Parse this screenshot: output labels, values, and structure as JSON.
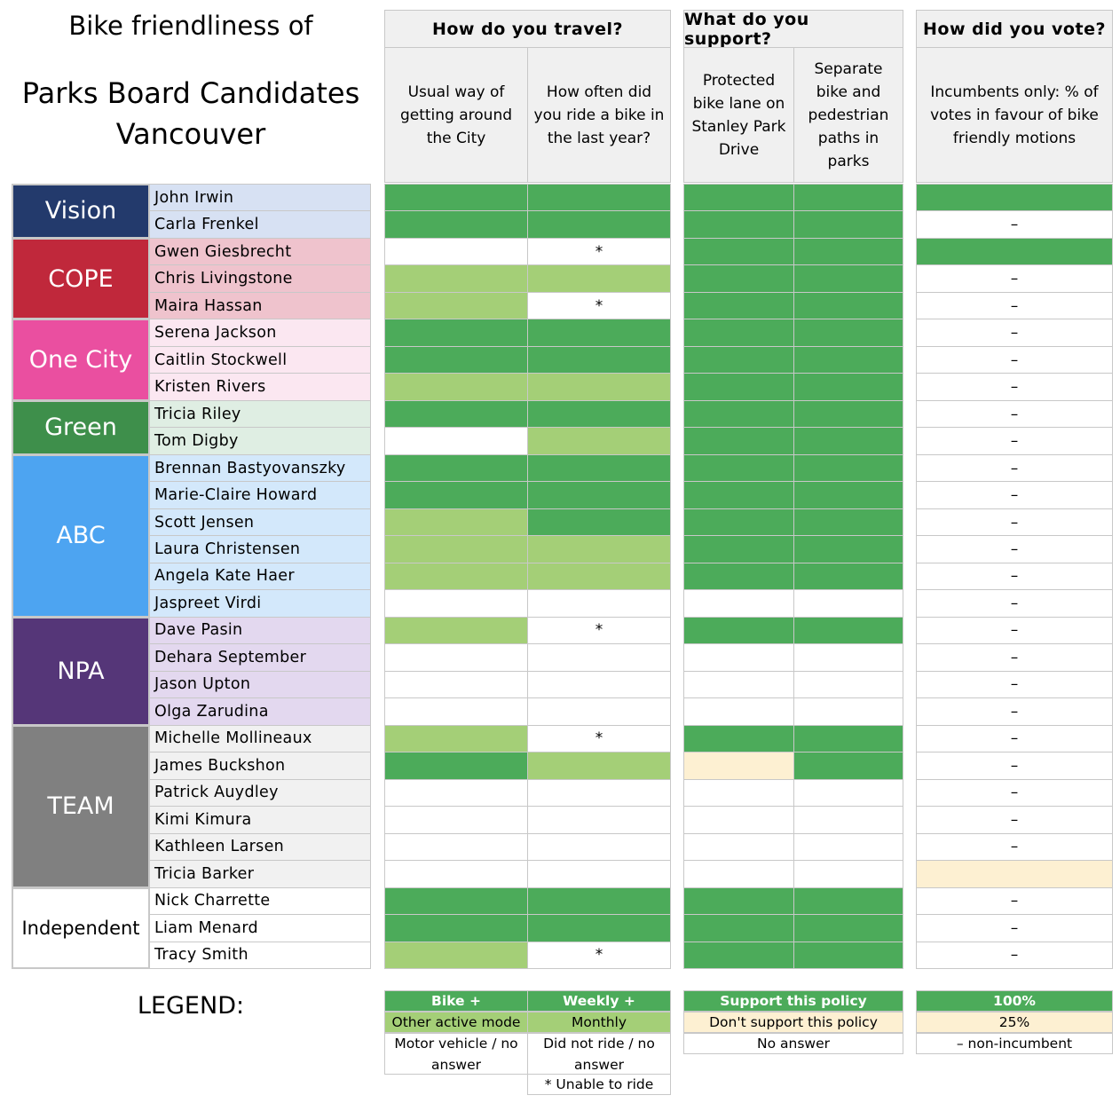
{
  "title": {
    "line1": "Bike friendliness of",
    "line2": "Parks Board Candidates",
    "line3": "Vancouver"
  },
  "groups": {
    "travel": "How do you travel?",
    "support": "What do you support?",
    "vote": "How did you vote?"
  },
  "columns": {
    "usual": "Usual way of getting around the City",
    "ride": "How often did you ride a bike in the last year?",
    "protected": "Protected bike lane on Stanley Park Drive",
    "separate": "Separate bike and pedestrian paths in parks",
    "votes": "Incumbents only: % of votes in favour of bike friendly motions"
  },
  "colors": {
    "G": "#4cab5a",
    "L": "#a4cf77",
    "W": "#ffffff",
    "Y": "#fdf0d2"
  },
  "parties": [
    {
      "name": "Vision",
      "color": "#233a6c",
      "text": "#ffffff",
      "bg": "#d7e1f3",
      "rows": 2
    },
    {
      "name": "COPE",
      "color": "#c0283b",
      "text": "#ffffff",
      "bg": "#efc3cd",
      "rows": 3
    },
    {
      "name": "One City",
      "color": "#ea4fa0",
      "text": "#ffffff",
      "bg": "#fbe7f1",
      "rows": 3
    },
    {
      "name": "Green",
      "color": "#3e8f4b",
      "text": "#ffffff",
      "bg": "#dfeee3",
      "rows": 2
    },
    {
      "name": "ABC",
      "color": "#4da4f1",
      "text": "#ffffff",
      "bg": "#d3e8fb",
      "rows": 6
    },
    {
      "name": "NPA",
      "color": "#553678",
      "text": "#ffffff",
      "bg": "#e3d8ef",
      "rows": 4
    },
    {
      "name": "TEAM",
      "color": "#808080",
      "text": "#ffffff",
      "bg": "#f1f1f1",
      "rows": 6
    },
    {
      "name": "Independent",
      "color": "#ffffff",
      "text": "#000000",
      "bg": "#ffffff",
      "rows": 3
    }
  ],
  "candidates": [
    {
      "name": "John Irwin",
      "v": [
        "G",
        "G",
        "G",
        "G",
        "G"
      ]
    },
    {
      "name": "Carla Frenkel",
      "v": [
        "G",
        "G",
        "G",
        "G",
        "–"
      ]
    },
    {
      "name": "Gwen Giesbrecht",
      "v": [
        "W",
        "*",
        "G",
        "G",
        "G"
      ]
    },
    {
      "name": "Chris Livingstone",
      "v": [
        "L",
        "L",
        "G",
        "G",
        "–"
      ]
    },
    {
      "name": "Maira Hassan",
      "v": [
        "L",
        "*",
        "G",
        "G",
        "–"
      ]
    },
    {
      "name": "Serena Jackson",
      "v": [
        "G",
        "G",
        "G",
        "G",
        "–"
      ]
    },
    {
      "name": "Caitlin Stockwell",
      "v": [
        "G",
        "G",
        "G",
        "G",
        "–"
      ]
    },
    {
      "name": "Kristen Rivers",
      "v": [
        "L",
        "L",
        "G",
        "G",
        "–"
      ]
    },
    {
      "name": "Tricia Riley",
      "v": [
        "G",
        "G",
        "G",
        "G",
        "–"
      ]
    },
    {
      "name": "Tom Digby",
      "v": [
        "W",
        "L",
        "G",
        "G",
        "–"
      ]
    },
    {
      "name": "Brennan Bastyovanszky",
      "v": [
        "G",
        "G",
        "G",
        "G",
        "–"
      ]
    },
    {
      "name": "Marie-Claire Howard",
      "v": [
        "G",
        "G",
        "G",
        "G",
        "–"
      ]
    },
    {
      "name": "Scott Jensen",
      "v": [
        "L",
        "G",
        "G",
        "G",
        "–"
      ]
    },
    {
      "name": "Laura Christensen",
      "v": [
        "L",
        "L",
        "G",
        "G",
        "–"
      ]
    },
    {
      "name": "Angela Kate Haer",
      "v": [
        "L",
        "L",
        "G",
        "G",
        "–"
      ]
    },
    {
      "name": "Jaspreet Virdi",
      "v": [
        "W",
        "W",
        "W",
        "W",
        "–"
      ]
    },
    {
      "name": "Dave Pasin",
      "v": [
        "L",
        "*",
        "G",
        "G",
        "–"
      ]
    },
    {
      "name": "Dehara September",
      "v": [
        "W",
        "W",
        "W",
        "W",
        "–"
      ]
    },
    {
      "name": "Jason Upton",
      "v": [
        "W",
        "W",
        "W",
        "W",
        "–"
      ]
    },
    {
      "name": "Olga Zarudina",
      "v": [
        "W",
        "W",
        "W",
        "W",
        "–"
      ]
    },
    {
      "name": "Michelle Mollineaux",
      "v": [
        "L",
        "*",
        "G",
        "G",
        "–"
      ]
    },
    {
      "name": "James Buckshon",
      "v": [
        "G",
        "L",
        "Y",
        "G",
        "–"
      ]
    },
    {
      "name": "Patrick Auydley",
      "v": [
        "W",
        "W",
        "W",
        "W",
        "–"
      ]
    },
    {
      "name": "Kimi Kimura",
      "v": [
        "W",
        "W",
        "W",
        "W",
        "–"
      ]
    },
    {
      "name": "Kathleen Larsen",
      "v": [
        "W",
        "W",
        "W",
        "W",
        "–"
      ]
    },
    {
      "name": "Tricia Barker",
      "v": [
        "W",
        "W",
        "W",
        "W",
        "Y"
      ]
    },
    {
      "name": "Nick Charrette",
      "v": [
        "G",
        "G",
        "G",
        "G",
        "–"
      ]
    },
    {
      "name": "Liam Menard",
      "v": [
        "G",
        "G",
        "G",
        "G",
        "–"
      ]
    },
    {
      "name": "Tracy Smith",
      "v": [
        "L",
        "*",
        "G",
        "G",
        "–"
      ]
    }
  ],
  "legend": {
    "title": "LEGEND:",
    "bike": "Bike +",
    "other": "Other active mode",
    "motor": "Motor vehicle / no answer",
    "weekly": "Weekly +",
    "monthly": "Monthly",
    "didnot": "Did not ride / no answer",
    "unable": "* Unable to ride",
    "support": "Support this policy",
    "nosupport": "Don't support this policy",
    "noanswer": "No answer",
    "p100": "100%",
    "p25": "25%",
    "nonincumbent": "– non-incumbent"
  }
}
